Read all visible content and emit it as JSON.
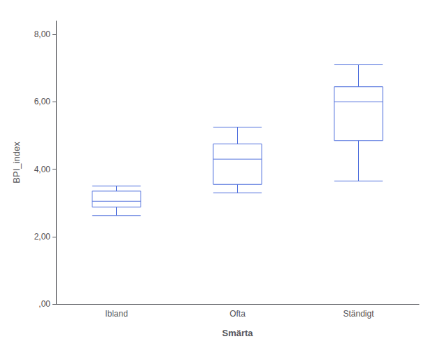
{
  "chart_data": {
    "type": "boxplot",
    "xlabel": "Smärta",
    "ylabel": "BPI_index",
    "categories": [
      "Ibland",
      "Ofta",
      "Ständigt"
    ],
    "whisker_low": [
      2.625,
      3.3,
      3.65
    ],
    "q1": [
      2.875,
      3.55,
      4.85
    ],
    "median": [
      3.05,
      4.3,
      6.0
    ],
    "q3": [
      3.35,
      4.75,
      6.45
    ],
    "whisker_high": [
      3.5,
      5.25,
      7.1
    ],
    "ylim": [
      0.0,
      8.4
    ],
    "yticks": [
      {
        "value": 0.0,
        "label": ",00"
      },
      {
        "value": 2.0,
        "label": "2,00"
      },
      {
        "value": 4.0,
        "label": "4,00"
      },
      {
        "value": 6.0,
        "label": "6,00"
      },
      {
        "value": 8.0,
        "label": "8,00"
      }
    ],
    "grid": false
  }
}
